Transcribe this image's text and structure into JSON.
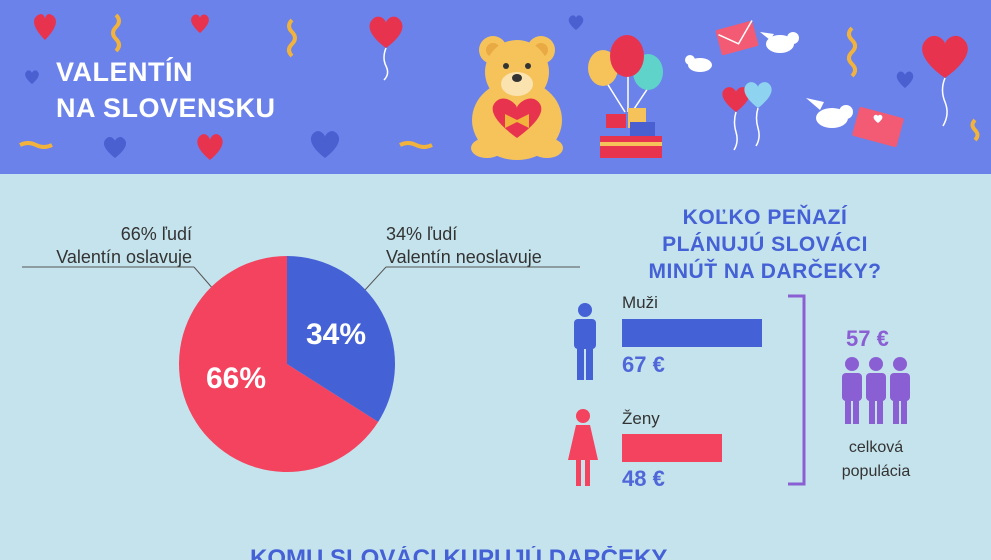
{
  "banner": {
    "title_line1": "VALENTÍN",
    "title_line2": "NA SLOVENSKU",
    "bg_color": "#6b82ea"
  },
  "pie": {
    "celebrate_pct": 66,
    "not_celebrate_pct": 34,
    "celebrate_label_line1": "66% ľudí",
    "celebrate_label_line2": "Valentín oslavuje",
    "not_label_line1": "34% ľudí",
    "not_label_line2": "Valentín neoslavuje",
    "celebrate_slice_text": "66%",
    "not_slice_text": "34%",
    "colors": {
      "celebrate": "#f4435f",
      "not": "#4561d6"
    }
  },
  "spending": {
    "question_line1": "KOĽKO PEŇAZÍ",
    "question_line2": "PLÁNUJÚ SLOVÁCI",
    "question_line3": "MINÚŤ NA DARČEKY?",
    "men": {
      "label": "Muži",
      "amount": "67 €",
      "value": 67,
      "color": "#4561d6",
      "icon": "man-icon"
    },
    "women": {
      "label": "Ženy",
      "amount": "48 €",
      "value": 48,
      "color": "#f4435f",
      "icon": "woman-icon"
    },
    "total": {
      "amount": "57 €",
      "label_line1": "celková",
      "label_line2": "populácia",
      "color": "#8a5fd4",
      "icon": "group-icon"
    }
  },
  "next_section_title_cut": "KOMU SLOVÁCI KUPUJÚ DARČEKY"
}
